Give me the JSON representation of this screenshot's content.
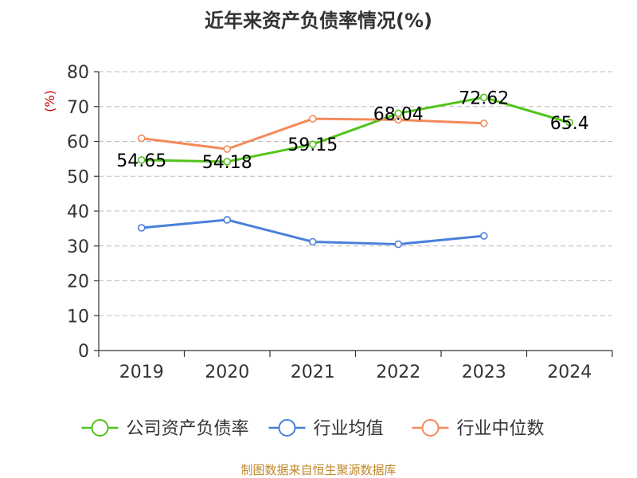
{
  "chart_data": {
    "type": "line",
    "title": "近年来资产负债率情况(%)",
    "unit": "(%)",
    "categories": [
      "2019",
      "2020",
      "2021",
      "2022",
      "2023",
      "2024"
    ],
    "ylim": [
      0,
      80
    ],
    "yticks": [
      0,
      10,
      20,
      30,
      40,
      50,
      60,
      70,
      80
    ],
    "grid": true,
    "legend_position": "bottom",
    "series": [
      {
        "name": "公司资产负债率",
        "color": "#52c41a",
        "values": [
          54.65,
          54.18,
          59.15,
          68.04,
          72.62,
          65.4
        ],
        "labels": [
          "54.65",
          "54.18",
          "59.15",
          "68.04",
          "72.62",
          "65.4"
        ]
      },
      {
        "name": "行业均值",
        "color": "#4a7fdb",
        "values": [
          35.2,
          37.5,
          31.2,
          30.5,
          32.9,
          null
        ]
      },
      {
        "name": "行业中位数",
        "color": "#f5895a",
        "values": [
          60.9,
          57.8,
          66.5,
          66.2,
          65.2,
          null
        ]
      }
    ]
  },
  "footer": {
    "source": "制图数据来自恒生聚源数据库"
  }
}
